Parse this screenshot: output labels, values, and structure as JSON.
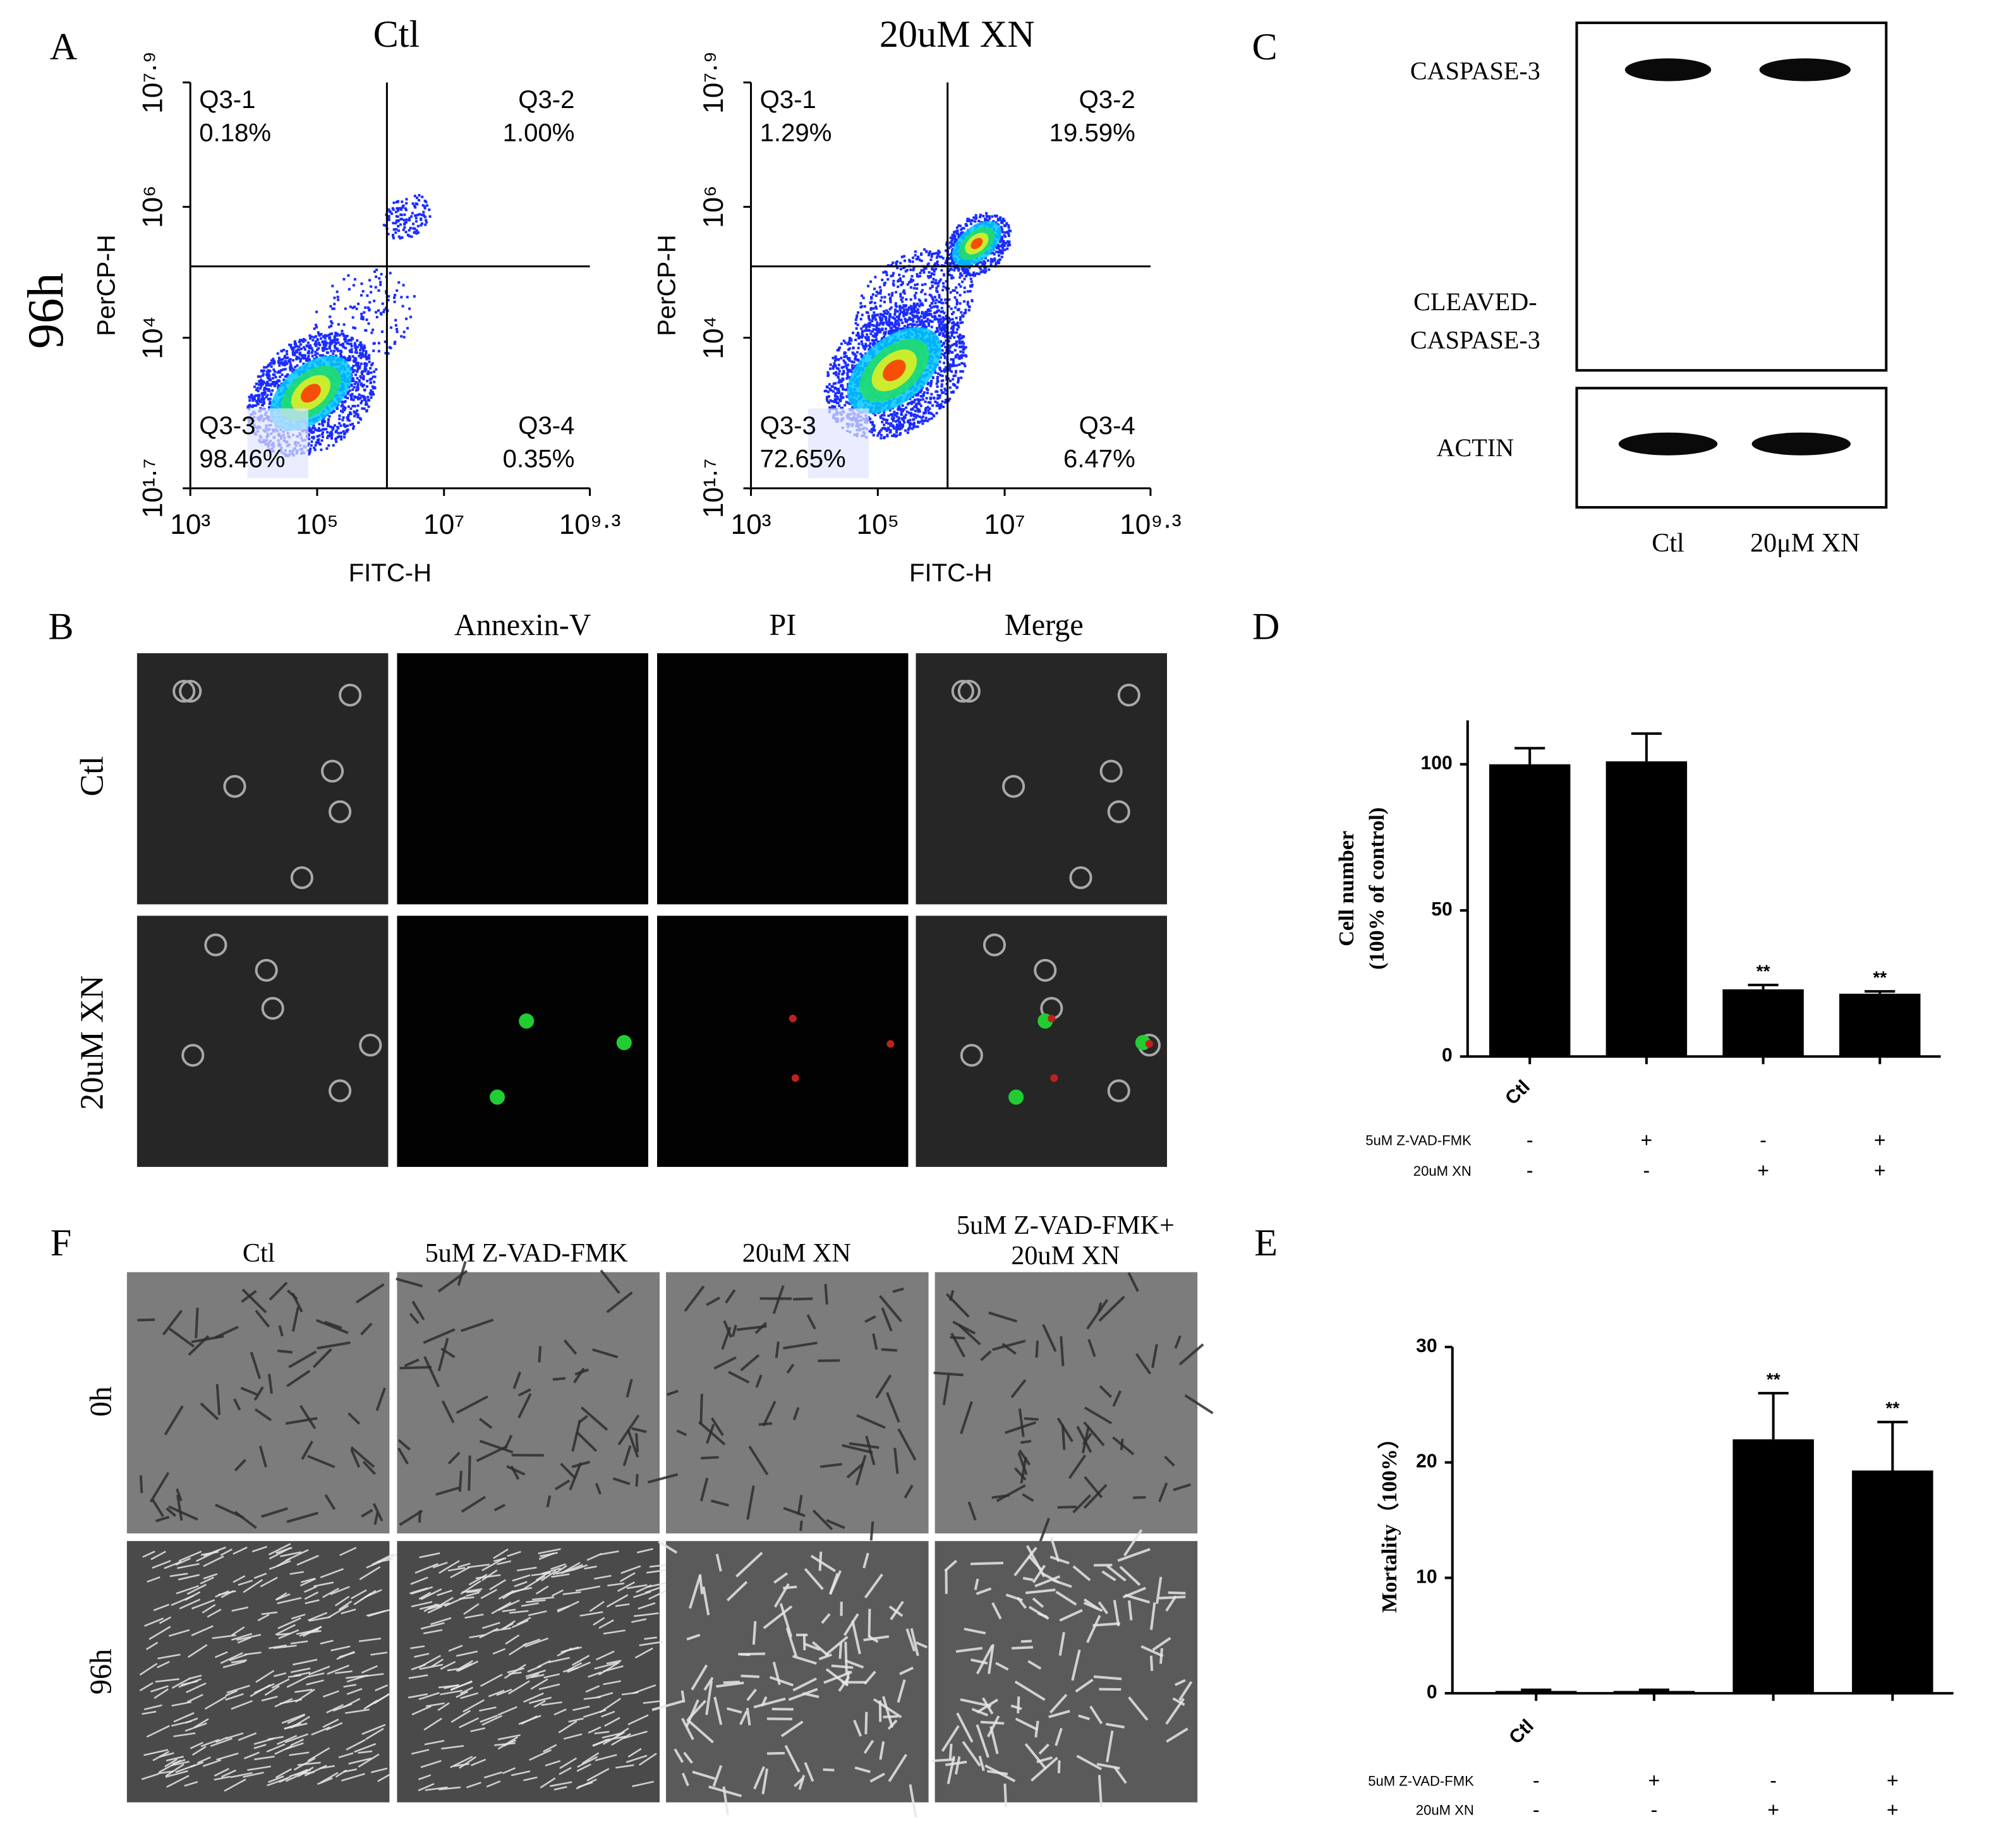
{
  "panel_labels": [
    "A",
    "B",
    "C",
    "D",
    "E",
    "F"
  ],
  "flow": {
    "time_label": "96h"
  },
  "chart_data": [
    {
      "type": "flow",
      "title": "Ctl",
      "xlabel": "FITC-H",
      "ylabel": "PerCP-H",
      "log_scale": true,
      "xlim": [
        1000,
        1995262315
      ],
      "xticks": [
        {
          "value": 1000,
          "label": "10³"
        },
        {
          "value": 100000,
          "label": "10⁵"
        },
        {
          "value": 10000000,
          "label": "10⁷"
        },
        {
          "value": 1995262315,
          "label": "10⁹·³"
        }
      ],
      "ylim": [
        50.12,
        79432823
      ],
      "yticks": [
        {
          "value": 50.12,
          "label": "10¹·⁷"
        },
        {
          "value": 10000,
          "label": "10⁴"
        },
        {
          "value": 1000000,
          "label": "10⁶"
        },
        {
          "value": 79432823,
          "label": "10⁷·⁹"
        }
      ],
      "quadrants": [
        {
          "name": "Q3-1",
          "value": "0.18%"
        },
        {
          "name": "Q3-2",
          "value": "1.00%"
        },
        {
          "name": "Q3-3",
          "value": "98.46%"
        },
        {
          "name": "Q3-4",
          "value": "0.35%"
        }
      ]
    },
    {
      "type": "flow",
      "title": "20uM XN",
      "xlabel": "FITC-H",
      "ylabel": "PerCP-H",
      "log_scale": true,
      "xlim": [
        1000,
        1995262315
      ],
      "xticks": [
        {
          "value": 1000,
          "label": "10³"
        },
        {
          "value": 100000,
          "label": "10⁵"
        },
        {
          "value": 10000000,
          "label": "10⁷"
        },
        {
          "value": 1995262315,
          "label": "10⁹·³"
        }
      ],
      "ylim": [
        50.12,
        79432823
      ],
      "yticks": [
        {
          "value": 50.12,
          "label": "10¹·⁷"
        },
        {
          "value": 10000,
          "label": "10⁴"
        },
        {
          "value": 1000000,
          "label": "10⁶"
        },
        {
          "value": 79432823,
          "label": "10⁷·⁹"
        }
      ],
      "quadrants": [
        {
          "name": "Q3-1",
          "value": "1.29%"
        },
        {
          "name": "Q3-2",
          "value": "19.59%"
        },
        {
          "name": "Q3-3",
          "value": "72.65%"
        },
        {
          "name": "Q3-4",
          "value": "6.47%"
        }
      ]
    },
    {
      "type": "bar",
      "ylabel": [
        "Cell number",
        "(100% of control)"
      ],
      "categories": [
        "Ctl",
        null,
        null,
        null
      ],
      "values": [
        100,
        101,
        23,
        21.5
      ],
      "errors": [
        5.5,
        9.5,
        1.5,
        0.8
      ],
      "significance": [
        null,
        null,
        "**",
        "**"
      ],
      "conditions": [
        {
          "name": "5uM Z-VAD-FMK",
          "marks": [
            "-",
            "+",
            "-",
            "+"
          ]
        },
        {
          "name": "20uM XN",
          "marks": [
            "-",
            "-",
            "+",
            "+"
          ]
        }
      ],
      "ylim": [
        0,
        115
      ],
      "yticks": [
        0,
        50,
        100
      ],
      "color": "#000000"
    },
    {
      "type": "bar",
      "ylabel": [
        "Mortality（100%）"
      ],
      "categories": [
        "Ctl",
        null,
        null,
        null
      ],
      "values": [
        0.2,
        0.2,
        22,
        19.3
      ],
      "errors": [
        0.1,
        0.1,
        4,
        4.2
      ],
      "significance": [
        null,
        null,
        "**",
        "**"
      ],
      "conditions": [
        {
          "name": "5uM Z-VAD-FMK",
          "marks": [
            "-",
            "+",
            "-",
            "+"
          ]
        },
        {
          "name": "20uM XN",
          "marks": [
            "-",
            "-",
            "+",
            "+"
          ]
        }
      ],
      "ylim": [
        0,
        30
      ],
      "yticks": [
        0,
        10,
        20,
        30
      ],
      "color": "#000000"
    }
  ],
  "blot": {
    "labels": [
      "CASPASE-3",
      "CLEAVED-",
      "CASPASE-3",
      "ACTIN"
    ],
    "lanes": [
      "Ctl",
      "20μM XN"
    ]
  },
  "fluorescence": {
    "columns": [
      "Annexin-V",
      "PI",
      "Merge"
    ],
    "rows": [
      "Ctl",
      "20uM XN"
    ]
  },
  "morphology": {
    "columns": [
      "Ctl",
      "5uM Z-VAD-FMK",
      "20uM XN",
      [
        "5uM Z-VAD-FMK+",
        "20uM XN"
      ]
    ],
    "rows": [
      "0h",
      "96h"
    ]
  }
}
